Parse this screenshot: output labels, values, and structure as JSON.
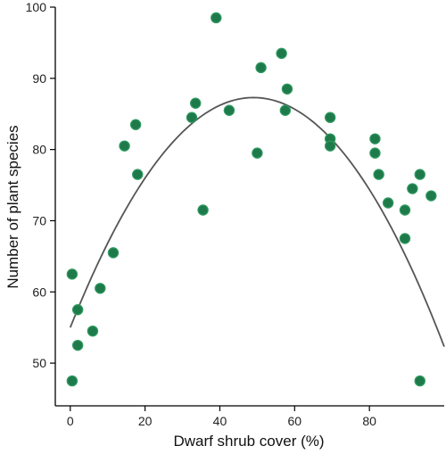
{
  "chart_data": {
    "type": "scatter",
    "title": "",
    "xlabel": "Dwarf shrub cover (%)",
    "ylabel": "Number of plant species",
    "xlim": [
      -4,
      100
    ],
    "ylim": [
      44,
      100
    ],
    "xticks": [
      0,
      20,
      40,
      60,
      80
    ],
    "yticks": [
      50,
      60,
      70,
      80,
      90,
      100
    ],
    "grid": false,
    "marker_color": "#1e7a4a",
    "line_color": "#555555",
    "points": [
      {
        "x": 0.5,
        "y": 62.5
      },
      {
        "x": 0.5,
        "y": 47.5
      },
      {
        "x": 2,
        "y": 57.5
      },
      {
        "x": 2,
        "y": 52.5
      },
      {
        "x": 6,
        "y": 54.5
      },
      {
        "x": 8,
        "y": 60.5
      },
      {
        "x": 11.5,
        "y": 65.5
      },
      {
        "x": 14.5,
        "y": 80.5
      },
      {
        "x": 17.5,
        "y": 83.5
      },
      {
        "x": 18,
        "y": 76.5
      },
      {
        "x": 32.5,
        "y": 84.5
      },
      {
        "x": 33.5,
        "y": 86.5
      },
      {
        "x": 35.5,
        "y": 71.5
      },
      {
        "x": 39,
        "y": 98.5
      },
      {
        "x": 42.5,
        "y": 85.5
      },
      {
        "x": 50,
        "y": 79.5
      },
      {
        "x": 51,
        "y": 91.5
      },
      {
        "x": 56.5,
        "y": 93.5
      },
      {
        "x": 57.5,
        "y": 85.5
      },
      {
        "x": 58,
        "y": 88.5
      },
      {
        "x": 69.5,
        "y": 84.5
      },
      {
        "x": 69.5,
        "y": 81.5
      },
      {
        "x": 69.5,
        "y": 80.5
      },
      {
        "x": 81.5,
        "y": 81.5
      },
      {
        "x": 81.5,
        "y": 79.5
      },
      {
        "x": 82.5,
        "y": 76.5
      },
      {
        "x": 85,
        "y": 72.5
      },
      {
        "x": 89.5,
        "y": 71.5
      },
      {
        "x": 89.5,
        "y": 67.5
      },
      {
        "x": 91.5,
        "y": 74.5
      },
      {
        "x": 93.5,
        "y": 76.5
      },
      {
        "x": 93.5,
        "y": 47.5
      },
      {
        "x": 96.5,
        "y": 73.5
      }
    ],
    "fit_curve": {
      "type": "quadratic",
      "peak_x": 49,
      "peak_y": 87.3,
      "x_range": [
        0,
        100
      ],
      "y_at_x0": 55
    }
  }
}
